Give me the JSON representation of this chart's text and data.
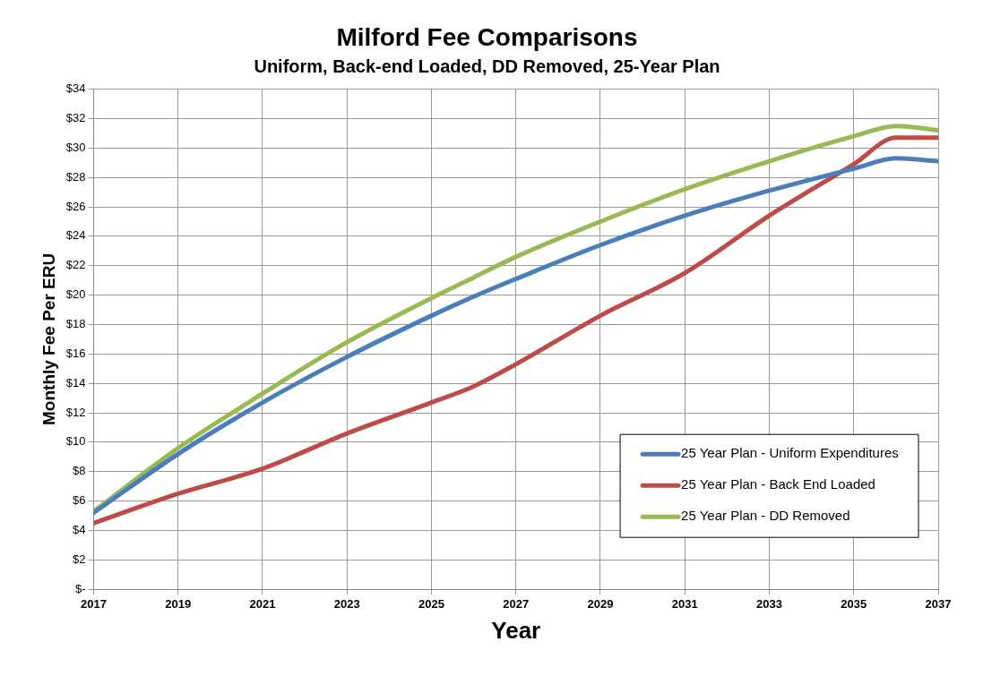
{
  "chart_data": {
    "type": "line",
    "title": "Milford Fee Comparisons",
    "subtitle": "Uniform, Back-end Loaded, DD Removed, 25-Year Plan",
    "xlabel": "Year",
    "ylabel": "Monthly Fee Per ERU",
    "x": [
      2017,
      2019,
      2021,
      2023,
      2025,
      2026,
      2027,
      2029,
      2031,
      2033,
      2035,
      2036,
      2037
    ],
    "series": [
      {
        "name": "25 Year Plan - Uniform Expenditures",
        "color": "#4a7ebb",
        "values": [
          5.2,
          9.2,
          12.7,
          15.8,
          18.6,
          19.9,
          21.1,
          23.4,
          25.4,
          27.1,
          28.6,
          29.3,
          29.1
        ]
      },
      {
        "name": "25 Year Plan - Back End Loaded",
        "color": "#be4b48",
        "values": [
          4.5,
          6.5,
          8.2,
          10.6,
          12.7,
          13.8,
          15.3,
          18.6,
          21.5,
          25.4,
          28.9,
          30.7,
          30.7
        ]
      },
      {
        "name": "25 Year Plan - DD Removed",
        "color": "#98b954",
        "values": [
          5.3,
          9.6,
          13.3,
          16.8,
          19.8,
          21.2,
          22.6,
          25.0,
          27.2,
          29.1,
          30.8,
          31.5,
          31.2
        ]
      }
    ],
    "xlim": [
      2017,
      2037
    ],
    "xticks": [
      2017,
      2019,
      2021,
      2023,
      2025,
      2027,
      2029,
      2031,
      2033,
      2035,
      2037
    ],
    "ylim": [
      0,
      34
    ],
    "yticks": [
      {
        "value": 0,
        "label": "$-"
      },
      {
        "value": 2,
        "label": "$2"
      },
      {
        "value": 4,
        "label": "$4"
      },
      {
        "value": 6,
        "label": "$6"
      },
      {
        "value": 8,
        "label": "$8"
      },
      {
        "value": 10,
        "label": "$10"
      },
      {
        "value": 12,
        "label": "$12"
      },
      {
        "value": 14,
        "label": "$14"
      },
      {
        "value": 16,
        "label": "$16"
      },
      {
        "value": 18,
        "label": "$18"
      },
      {
        "value": 20,
        "label": "$20"
      },
      {
        "value": 22,
        "label": "$22"
      },
      {
        "value": 24,
        "label": "$24"
      },
      {
        "value": 26,
        "label": "$26"
      },
      {
        "value": 28,
        "label": "$28"
      },
      {
        "value": 30,
        "label": "$30"
      },
      {
        "value": 32,
        "label": "$32"
      },
      {
        "value": 34,
        "label": "$34"
      }
    ],
    "grid": true,
    "legend": "bottom right",
    "marker": "none",
    "line_style": "solid"
  }
}
